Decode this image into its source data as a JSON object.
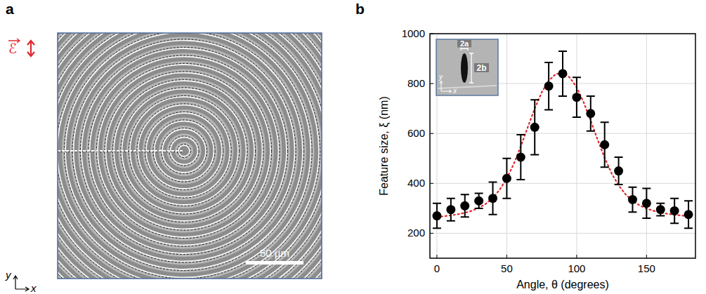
{
  "chart_data": [
    {
      "type": "image",
      "panel": "a",
      "annotations": [
        "ℰ",
        "50 µm",
        "y",
        "x"
      ]
    },
    {
      "type": "scatter",
      "panel": "b",
      "x_label": "Angle, θ (degrees)",
      "y_label": "Feature size, ξ (nm)",
      "annotations": [
        "2a",
        "2b",
        "y",
        "x"
      ],
      "xlim": [
        -5,
        185
      ],
      "xticks": [
        0,
        50,
        100,
        150
      ],
      "ylim": [
        100,
        1000
      ],
      "yticks": [
        200,
        400,
        600,
        800,
        1000
      ],
      "grid": true,
      "series": [
        {
          "type": "scatter",
          "marker": "circle",
          "color": "#000000",
          "x": [
            0,
            10,
            20,
            30,
            40,
            50,
            60,
            70,
            80,
            90,
            100,
            110,
            120,
            130,
            140,
            150,
            160,
            170,
            180
          ],
          "values": [
            270,
            295,
            310,
            330,
            340,
            420,
            505,
            625,
            790,
            840,
            745,
            680,
            555,
            450,
            335,
            320,
            295,
            290,
            275
          ],
          "errors": [
            50,
            45,
            45,
            30,
            65,
            80,
            90,
            110,
            95,
            90,
            80,
            70,
            90,
            55,
            50,
            60,
            25,
            50,
            55
          ]
        },
        {
          "type": "line",
          "line_style": "dotted",
          "color": "#e0282e",
          "x": [
            0,
            5,
            10,
            15,
            20,
            25,
            30,
            35,
            40,
            45,
            50,
            55,
            60,
            65,
            70,
            75,
            80,
            85,
            90,
            95,
            100,
            105,
            110,
            115,
            120,
            125,
            130,
            135,
            140,
            145,
            150,
            155,
            160,
            165,
            170,
            175,
            180
          ],
          "values": [
            265,
            268,
            272,
            276,
            282,
            290,
            302,
            318,
            342,
            375,
            420,
            478,
            548,
            625,
            700,
            765,
            812,
            838,
            843,
            825,
            785,
            725,
            652,
            575,
            503,
            440,
            392,
            356,
            330,
            312,
            299,
            290,
            283,
            278,
            274,
            271,
            269
          ]
        }
      ]
    }
  ]
}
